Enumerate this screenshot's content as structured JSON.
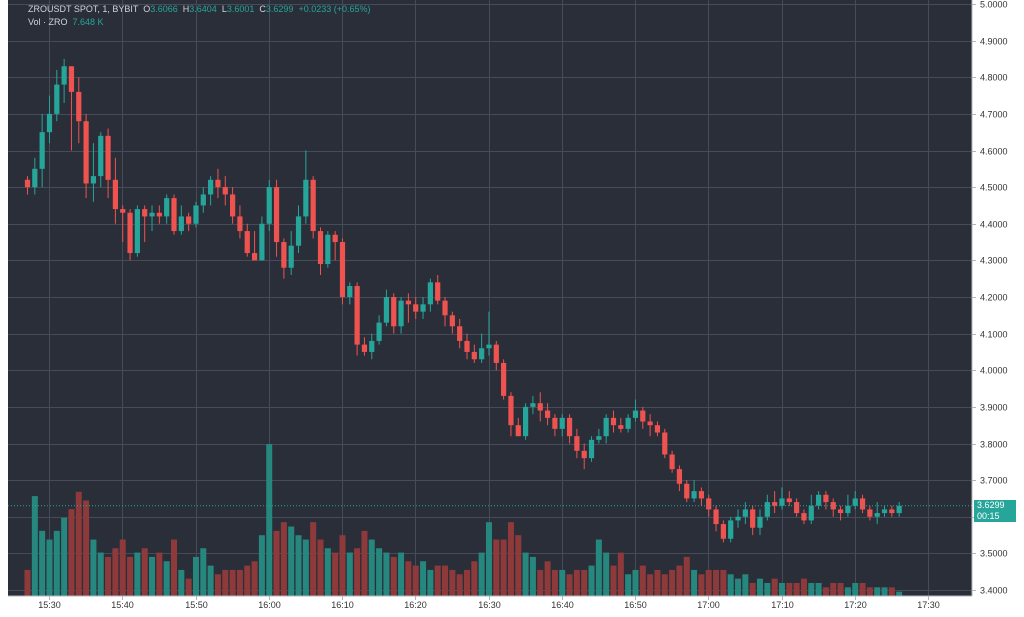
{
  "header": {
    "symbol": "ZROUSDT SPOT, 1, BYBIT",
    "open_label": "O",
    "open": "3.6066",
    "high_label": "H",
    "high": "3.6404",
    "low_label": "L",
    "low": "3.6001",
    "close_label": "C",
    "close": "3.6299",
    "change": "+0.0233 (+0.65%)",
    "vol_label": "Vol · ZRO",
    "vol_value": "7.648 K"
  },
  "price_tag": {
    "price": "3.6299",
    "countdown": "00:15"
  },
  "colors": {
    "background": "#2a2e39",
    "grid": "#454b58",
    "up": "#26a69a",
    "down": "#ef5350",
    "up_vol": "#26877e",
    "down_vol": "#8e3a3b",
    "axis_bg": "#ffffff",
    "axis_text": "#333333"
  },
  "chart_data": {
    "type": "candlestick",
    "x_axis_ticks": [
      "15:30",
      "15:40",
      "15:50",
      "16:00",
      "16:10",
      "16:20",
      "16:30",
      "16:40",
      "16:50",
      "17:00",
      "17:10",
      "17:20",
      "17:30"
    ],
    "y_axis_ticks": [
      "5.0000",
      "4.9000",
      "4.8000",
      "4.7000",
      "4.6000",
      "4.5000",
      "4.4000",
      "4.3000",
      "4.2000",
      "4.1000",
      "4.0000",
      "3.9000",
      "3.8000",
      "3.7000",
      "3.6000",
      "3.5000",
      "3.4000"
    ],
    "ylim": [
      3.4,
      5.0
    ],
    "start_time": "15:27",
    "interval_minutes": 1,
    "candles": [
      [
        4.52,
        4.5,
        4.53,
        4.48
      ],
      [
        4.5,
        4.55,
        4.58,
        4.48
      ],
      [
        4.55,
        4.65,
        4.7,
        4.5
      ],
      [
        4.65,
        4.7,
        4.75,
        4.62
      ],
      [
        4.7,
        4.78,
        4.82,
        4.68
      ],
      [
        4.78,
        4.83,
        4.85,
        4.73
      ],
      [
        4.83,
        4.76,
        4.83,
        4.6
      ],
      [
        4.76,
        4.68,
        4.8,
        4.62
      ],
      [
        4.68,
        4.51,
        4.7,
        4.47
      ],
      [
        4.51,
        4.53,
        4.62,
        4.46
      ],
      [
        4.53,
        4.64,
        4.65,
        4.5
      ],
      [
        4.64,
        4.52,
        4.66,
        4.47
      ],
      [
        4.52,
        4.44,
        4.58,
        4.4
      ],
      [
        4.44,
        4.43,
        4.45,
        4.35
      ],
      [
        4.43,
        4.32,
        4.44,
        4.3
      ],
      [
        4.32,
        4.44,
        4.45,
        4.31
      ],
      [
        4.44,
        4.42,
        4.45,
        4.35
      ],
      [
        4.42,
        4.43,
        4.45,
        4.38
      ],
      [
        4.43,
        4.42,
        4.45,
        4.4
      ],
      [
        4.42,
        4.47,
        4.48,
        4.4
      ],
      [
        4.47,
        4.38,
        4.48,
        4.37
      ],
      [
        4.38,
        4.42,
        4.45,
        4.37
      ],
      [
        4.42,
        4.4,
        4.43,
        4.38
      ],
      [
        4.4,
        4.45,
        4.46,
        4.39
      ],
      [
        4.45,
        4.48,
        4.5,
        4.43
      ],
      [
        4.48,
        4.52,
        4.53,
        4.45
      ],
      [
        4.52,
        4.5,
        4.55,
        4.47
      ],
      [
        4.5,
        4.48,
        4.53,
        4.45
      ],
      [
        4.48,
        4.42,
        4.5,
        4.4
      ],
      [
        4.42,
        4.38,
        4.45,
        4.36
      ],
      [
        4.38,
        4.32,
        4.4,
        4.31
      ],
      [
        4.32,
        4.3,
        4.38,
        4.3
      ],
      [
        4.3,
        4.4,
        4.42,
        4.3
      ],
      [
        4.4,
        4.5,
        4.52,
        4.38
      ],
      [
        4.5,
        4.35,
        4.52,
        4.31
      ],
      [
        4.35,
        4.28,
        4.36,
        4.25
      ],
      [
        4.28,
        4.34,
        4.38,
        4.26
      ],
      [
        4.34,
        4.42,
        4.45,
        4.32
      ],
      [
        4.42,
        4.52,
        4.6,
        4.4
      ],
      [
        4.52,
        4.38,
        4.53,
        4.36
      ],
      [
        4.38,
        4.29,
        4.39,
        4.26
      ],
      [
        4.29,
        4.37,
        4.38,
        4.28
      ],
      [
        4.37,
        4.35,
        4.38,
        4.3
      ],
      [
        4.35,
        4.2,
        4.36,
        4.18
      ],
      [
        4.2,
        4.23,
        4.24,
        4.18
      ],
      [
        4.23,
        4.07,
        4.24,
        4.04
      ],
      [
        4.07,
        4.05,
        4.09,
        4.04
      ],
      [
        4.05,
        4.08,
        4.1,
        4.03
      ],
      [
        4.08,
        4.13,
        4.15,
        4.07
      ],
      [
        4.13,
        4.2,
        4.22,
        4.12
      ],
      [
        4.2,
        4.12,
        4.21,
        4.1
      ],
      [
        4.12,
        4.19,
        4.2,
        4.1
      ],
      [
        4.19,
        4.18,
        4.21,
        4.13
      ],
      [
        4.18,
        4.16,
        4.2,
        4.14
      ],
      [
        4.16,
        4.18,
        4.2,
        4.14
      ],
      [
        4.18,
        4.24,
        4.25,
        4.16
      ],
      [
        4.24,
        4.19,
        4.26,
        4.18
      ],
      [
        4.19,
        4.15,
        4.2,
        4.12
      ],
      [
        4.15,
        4.12,
        4.16,
        4.1
      ],
      [
        4.12,
        4.08,
        4.14,
        4.06
      ],
      [
        4.08,
        4.05,
        4.1,
        4.03
      ],
      [
        4.05,
        4.03,
        4.07,
        4.02
      ],
      [
        4.03,
        4.06,
        4.1,
        4.02
      ],
      [
        4.06,
        4.07,
        4.16,
        4.04
      ],
      [
        4.07,
        4.02,
        4.08,
        4.0
      ],
      [
        4.02,
        3.93,
        4.03,
        3.92
      ],
      [
        3.93,
        3.85,
        3.94,
        3.82
      ],
      [
        3.85,
        3.82,
        3.87,
        3.82
      ],
      [
        3.82,
        3.9,
        3.91,
        3.81
      ],
      [
        3.9,
        3.91,
        3.93,
        3.88
      ],
      [
        3.91,
        3.89,
        3.94,
        3.86
      ],
      [
        3.89,
        3.87,
        3.91,
        3.85
      ],
      [
        3.87,
        3.84,
        3.88,
        3.82
      ],
      [
        3.84,
        3.87,
        3.88,
        3.82
      ],
      [
        3.87,
        3.82,
        3.88,
        3.8
      ],
      [
        3.82,
        3.78,
        3.84,
        3.76
      ],
      [
        3.78,
        3.76,
        3.8,
        3.73
      ],
      [
        3.76,
        3.81,
        3.82,
        3.75
      ],
      [
        3.81,
        3.82,
        3.84,
        3.8
      ],
      [
        3.82,
        3.87,
        3.88,
        3.8
      ],
      [
        3.87,
        3.85,
        3.89,
        3.83
      ],
      [
        3.85,
        3.84,
        3.87,
        3.83
      ],
      [
        3.84,
        3.87,
        3.88,
        3.83
      ],
      [
        3.87,
        3.89,
        3.92,
        3.86
      ],
      [
        3.89,
        3.86,
        3.9,
        3.84
      ],
      [
        3.86,
        3.85,
        3.88,
        3.82
      ],
      [
        3.85,
        3.83,
        3.86,
        3.82
      ],
      [
        3.83,
        3.77,
        3.84,
        3.76
      ],
      [
        3.77,
        3.73,
        3.78,
        3.72
      ],
      [
        3.73,
        3.69,
        3.74,
        3.67
      ],
      [
        3.69,
        3.65,
        3.7,
        3.64
      ],
      [
        3.65,
        3.67,
        3.7,
        3.64
      ],
      [
        3.67,
        3.65,
        3.68,
        3.63
      ],
      [
        3.65,
        3.62,
        3.66,
        3.6
      ],
      [
        3.62,
        3.58,
        3.63,
        3.56
      ],
      [
        3.58,
        3.54,
        3.59,
        3.53
      ],
      [
        3.54,
        3.59,
        3.6,
        3.53
      ],
      [
        3.59,
        3.6,
        3.62,
        3.57
      ],
      [
        3.6,
        3.62,
        3.64,
        3.58
      ],
      [
        3.62,
        3.57,
        3.63,
        3.55
      ],
      [
        3.57,
        3.6,
        3.62,
        3.55
      ],
      [
        3.6,
        3.64,
        3.66,
        3.59
      ],
      [
        3.64,
        3.63,
        3.67,
        3.61
      ],
      [
        3.63,
        3.65,
        3.68,
        3.62
      ],
      [
        3.65,
        3.64,
        3.67,
        3.63
      ],
      [
        3.64,
        3.61,
        3.65,
        3.6
      ],
      [
        3.61,
        3.59,
        3.62,
        3.58
      ],
      [
        3.59,
        3.63,
        3.66,
        3.58
      ],
      [
        3.63,
        3.66,
        3.67,
        3.62
      ],
      [
        3.66,
        3.64,
        3.67,
        3.62
      ],
      [
        3.64,
        3.62,
        3.65,
        3.6
      ],
      [
        3.62,
        3.61,
        3.63,
        3.59
      ],
      [
        3.61,
        3.63,
        3.66,
        3.6
      ],
      [
        3.63,
        3.65,
        3.67,
        3.62
      ],
      [
        3.65,
        3.62,
        3.66,
        3.61
      ],
      [
        3.62,
        3.6,
        3.63,
        3.59
      ],
      [
        3.6,
        3.61,
        3.64,
        3.58
      ],
      [
        3.61,
        3.62,
        3.63,
        3.6
      ],
      [
        3.62,
        3.61,
        3.63,
        3.6
      ],
      [
        3.61,
        3.63,
        3.64,
        3.6
      ]
    ],
    "volumes": [
      0.6,
      2.3,
      1.5,
      1.3,
      1.5,
      1.8,
      2.0,
      2.4,
      2.2,
      1.3,
      1.0,
      0.9,
      1.1,
      1.3,
      0.9,
      1.0,
      1.1,
      0.9,
      1.0,
      0.8,
      1.3,
      0.6,
      0.4,
      0.9,
      1.1,
      0.7,
      0.5,
      0.6,
      0.6,
      0.6,
      0.7,
      0.8,
      1.4,
      3.5,
      1.5,
      1.7,
      1.6,
      1.4,
      1.3,
      1.7,
      1.3,
      1.1,
      1.0,
      1.4,
      1.0,
      1.1,
      1.5,
      1.3,
      1.1,
      1.0,
      0.9,
      1.0,
      0.8,
      0.7,
      0.8,
      0.6,
      0.7,
      0.7,
      0.6,
      0.5,
      0.6,
      0.8,
      1.0,
      1.7,
      1.3,
      1.3,
      1.7,
      1.4,
      1.0,
      0.9,
      0.6,
      0.8,
      0.6,
      0.6,
      0.5,
      0.6,
      0.6,
      0.7,
      1.3,
      1.0,
      0.7,
      1.0,
      0.5,
      0.6,
      0.7,
      0.5,
      0.6,
      0.5,
      0.6,
      0.7,
      0.9,
      0.6,
      0.5,
      0.6,
      0.6,
      0.6,
      0.5,
      0.4,
      0.5,
      0.3,
      0.4,
      0.3,
      0.4,
      0.3,
      0.3,
      0.3,
      0.4,
      0.3,
      0.3,
      0.2,
      0.3,
      0.3,
      0.2,
      0.3,
      0.3,
      0.2,
      0.2,
      0.2,
      0.2,
      0.1,
      0.1
    ]
  }
}
